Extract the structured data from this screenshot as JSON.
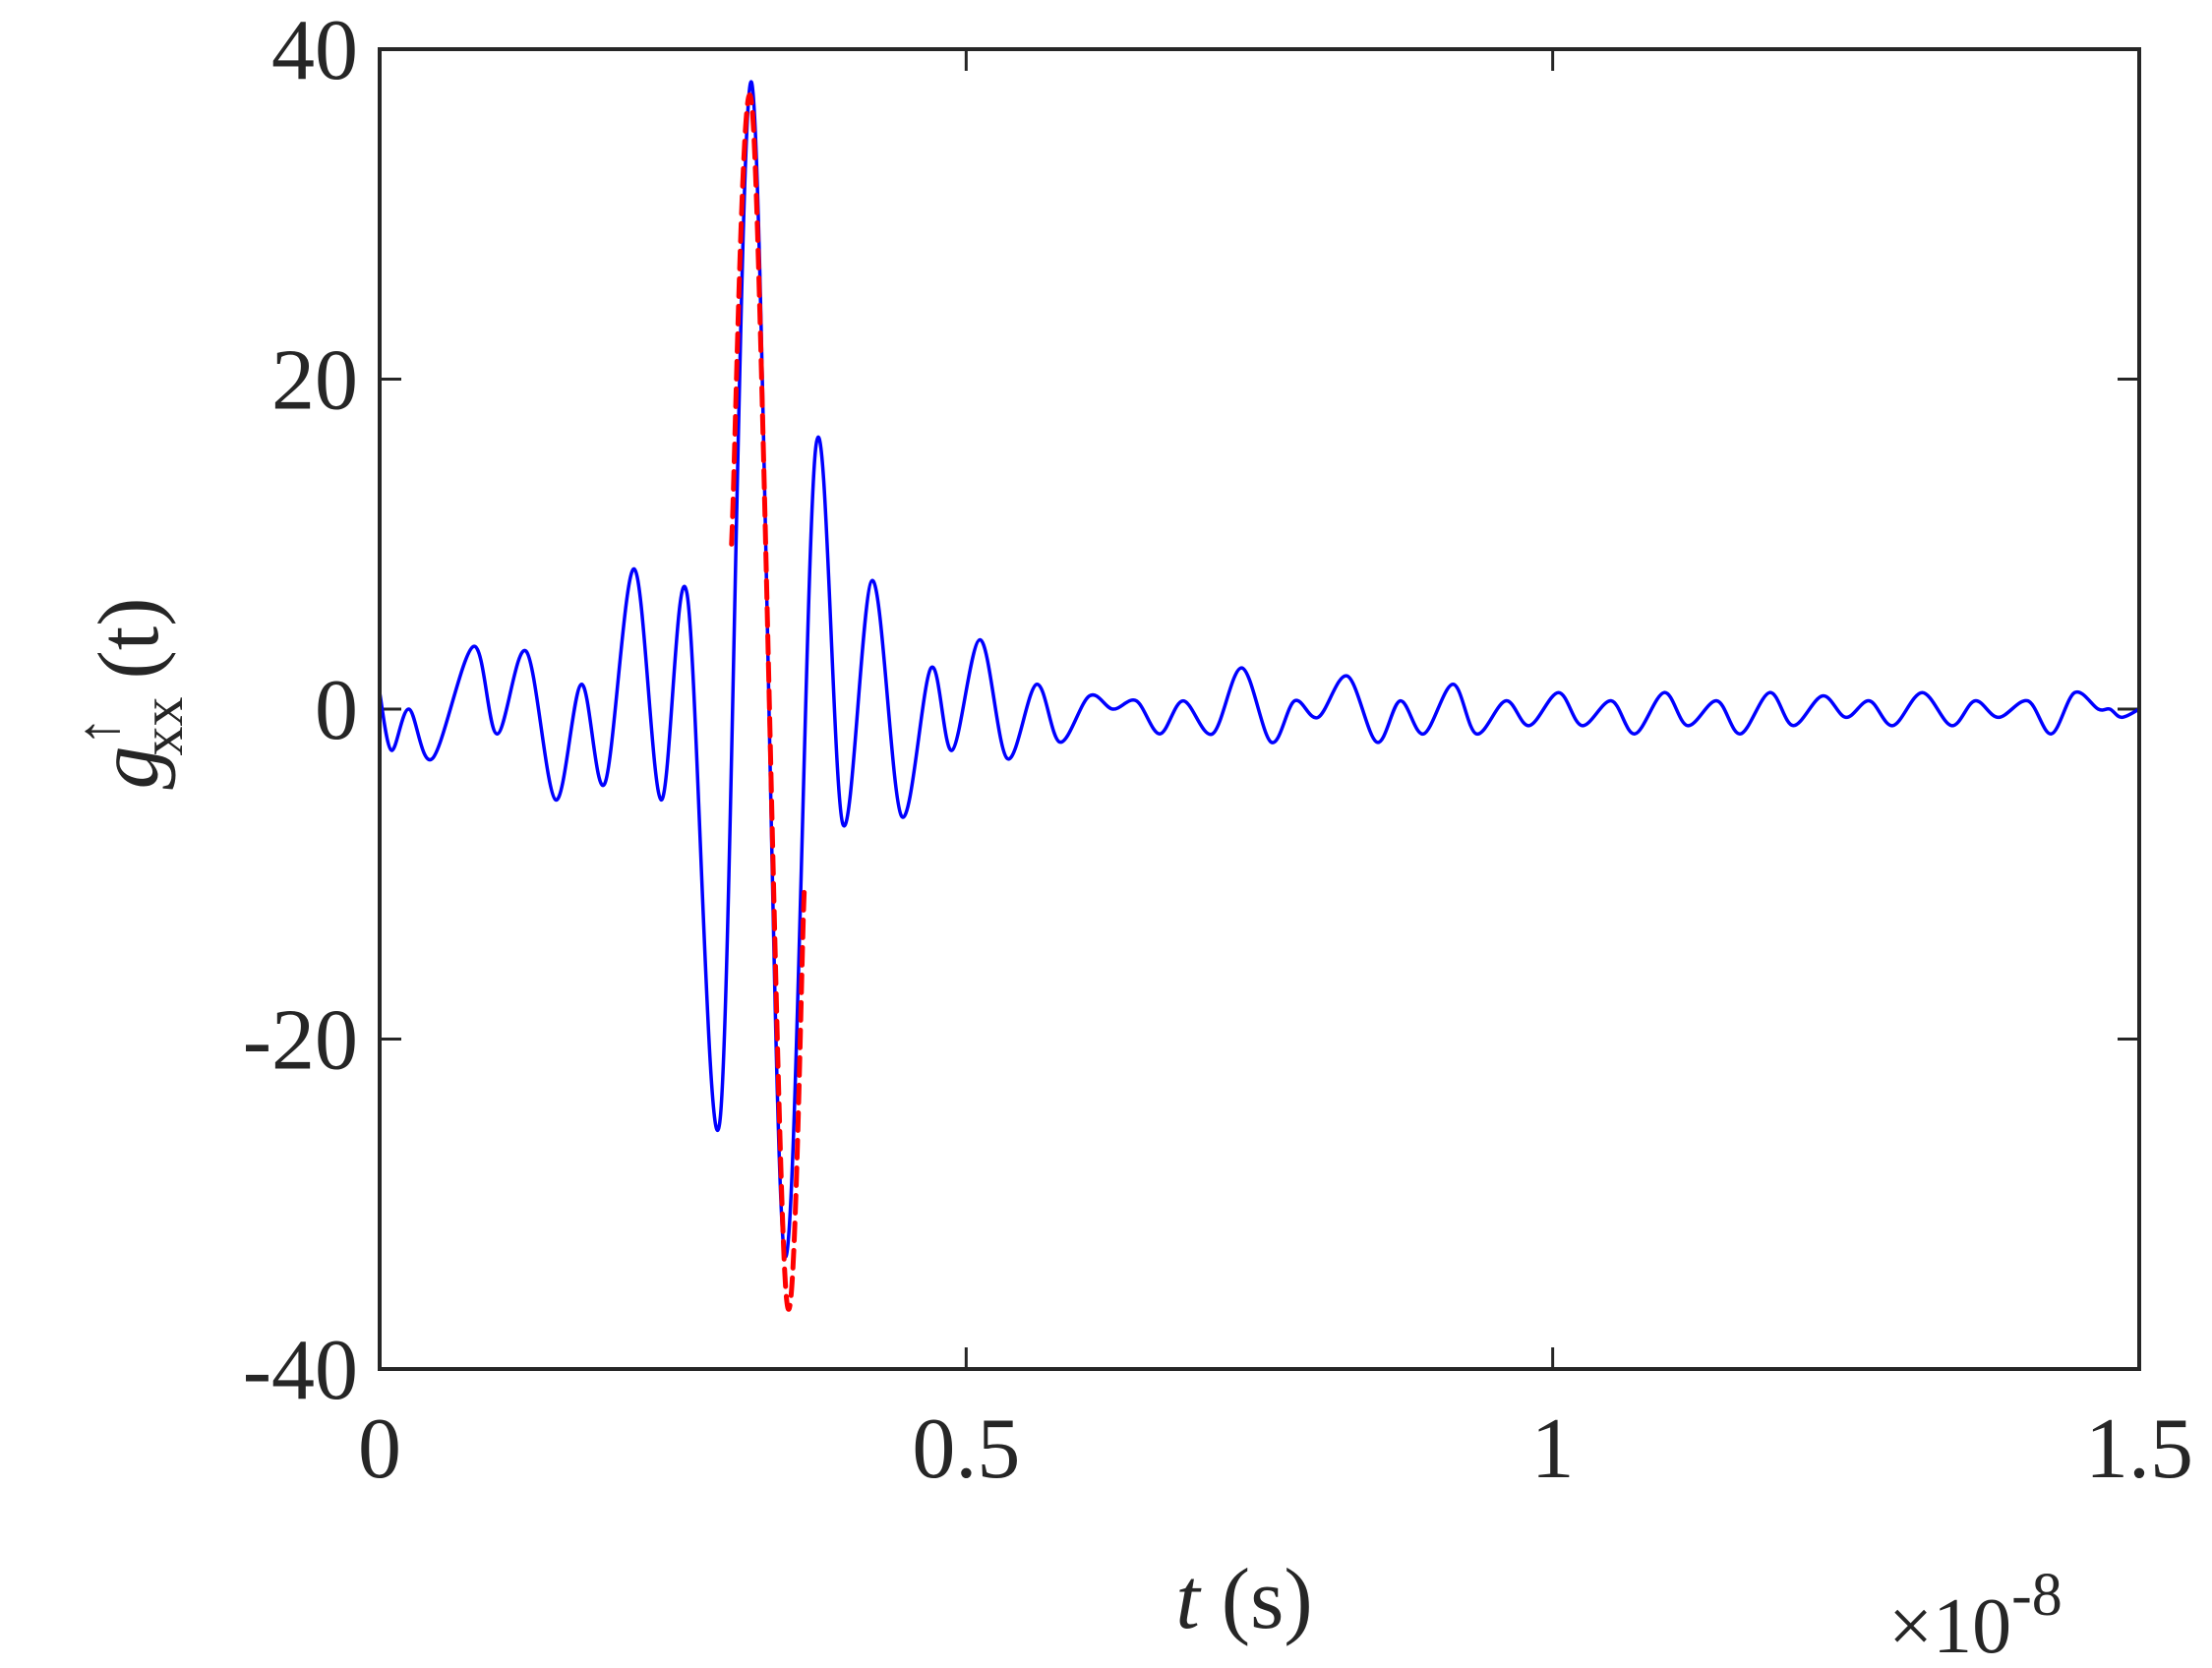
{
  "chart_data": {
    "type": "line",
    "title": "",
    "xlabel": {
      "var": "t",
      "unit": " (s)"
    },
    "ylabel": {
      "base": "g",
      "superscript": "↑",
      "subscript": "xx",
      "arg": "(t)"
    },
    "x_multiplier": {
      "times": "×10",
      "exponent": "-8"
    },
    "xlim": [
      0,
      1.5
    ],
    "ylim": [
      -40,
      40
    ],
    "xticks": [
      0,
      0.5,
      1,
      1.5
    ],
    "xtick_labels": [
      "0",
      "0.5",
      "1",
      "1.5"
    ],
    "yticks": [
      -40,
      -20,
      0,
      20,
      40
    ],
    "ytick_labels": [
      "-40",
      "-20",
      "0",
      "20",
      "40"
    ],
    "grid": false,
    "legend": "none",
    "series": [
      {
        "color": "#0000ff",
        "style": "solid",
        "points": [
          [
            0.0,
            1.0
          ],
          [
            0.01,
            -2.5
          ],
          [
            0.025,
            0.0
          ],
          [
            0.045,
            -3.0
          ],
          [
            0.08,
            3.8
          ],
          [
            0.1,
            -1.5
          ],
          [
            0.125,
            3.5
          ],
          [
            0.15,
            -5.5
          ],
          [
            0.172,
            1.5
          ],
          [
            0.192,
            -4.5
          ],
          [
            0.217,
            8.5
          ],
          [
            0.24,
            -5.5
          ],
          [
            0.262,
            7.0
          ],
          [
            0.29,
            -25.0
          ],
          [
            0.317,
            38.0
          ],
          [
            0.345,
            -33.0
          ],
          [
            0.372,
            16.0
          ],
          [
            0.395,
            -7.0
          ],
          [
            0.42,
            7.8
          ],
          [
            0.445,
            -6.5
          ],
          [
            0.47,
            2.5
          ],
          [
            0.488,
            -2.5
          ],
          [
            0.512,
            4.2
          ],
          [
            0.535,
            -3.0
          ],
          [
            0.56,
            1.5
          ],
          [
            0.58,
            -2.0
          ],
          [
            0.605,
            0.8
          ],
          [
            0.625,
            0.0
          ],
          [
            0.645,
            0.5
          ],
          [
            0.665,
            -1.5
          ],
          [
            0.685,
            0.5
          ],
          [
            0.71,
            -1.5
          ],
          [
            0.735,
            2.5
          ],
          [
            0.76,
            -2.0
          ],
          [
            0.78,
            0.5
          ],
          [
            0.8,
            -0.5
          ],
          [
            0.825,
            2.0
          ],
          [
            0.85,
            -2.0
          ],
          [
            0.87,
            0.5
          ],
          [
            0.89,
            -1.5
          ],
          [
            0.915,
            1.5
          ],
          [
            0.935,
            -1.5
          ],
          [
            0.96,
            0.5
          ],
          [
            0.98,
            -1.0
          ],
          [
            1.005,
            1.0
          ],
          [
            1.025,
            -1.0
          ],
          [
            1.05,
            0.5
          ],
          [
            1.07,
            -1.5
          ],
          [
            1.095,
            1.0
          ],
          [
            1.115,
            -1.0
          ],
          [
            1.14,
            0.5
          ],
          [
            1.16,
            -1.5
          ],
          [
            1.185,
            1.0
          ],
          [
            1.205,
            -1.0
          ],
          [
            1.23,
            0.8
          ],
          [
            1.25,
            -0.5
          ],
          [
            1.27,
            0.5
          ],
          [
            1.29,
            -1.0
          ],
          [
            1.315,
            1.0
          ],
          [
            1.34,
            -1.0
          ],
          [
            1.36,
            0.5
          ],
          [
            1.38,
            -0.5
          ],
          [
            1.405,
            0.5
          ],
          [
            1.425,
            -1.5
          ],
          [
            1.445,
            1.0
          ],
          [
            1.465,
            0.0
          ],
          [
            1.475,
            0.0
          ],
          [
            1.485,
            -0.5
          ],
          [
            1.5,
            0.0
          ]
        ]
      },
      {
        "color": "#ff0000",
        "style": "dashed",
        "points": [
          [
            0.3,
            10.0
          ],
          [
            0.318,
            36.0
          ],
          [
            0.346,
            -35.0
          ],
          [
            0.362,
            -11.0
          ]
        ]
      }
    ]
  }
}
